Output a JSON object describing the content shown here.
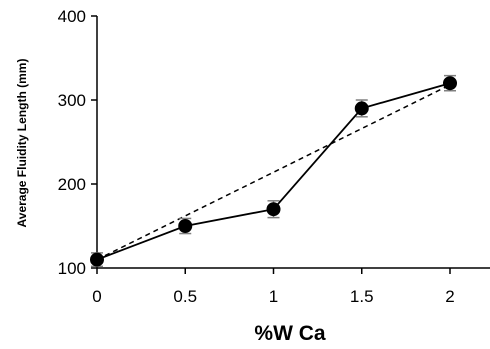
{
  "chart_data": {
    "type": "line",
    "title": "",
    "xlabel": "%W Ca",
    "ylabel": "Average Fluidity Length (mm)",
    "xlim": [
      0,
      2
    ],
    "ylim": [
      100,
      400
    ],
    "x_ticks": [
      "0",
      "0.5",
      "1",
      "1.5",
      "2"
    ],
    "y_ticks": [
      "100",
      "200",
      "300",
      "400"
    ],
    "grid": false,
    "legend": "none",
    "series": [
      {
        "style": "solid-with-markers",
        "x": [
          0,
          0.5,
          1,
          1.5,
          2
        ],
        "y": [
          110,
          150,
          170,
          290,
          320
        ],
        "error": [
          8,
          9,
          10,
          10,
          9
        ]
      },
      {
        "style": "dashed-trend",
        "x": [
          0,
          2
        ],
        "y": [
          110,
          318
        ]
      }
    ],
    "colors": {
      "line": "#000000",
      "marker": "#000000",
      "error_bar": "#808080"
    }
  }
}
